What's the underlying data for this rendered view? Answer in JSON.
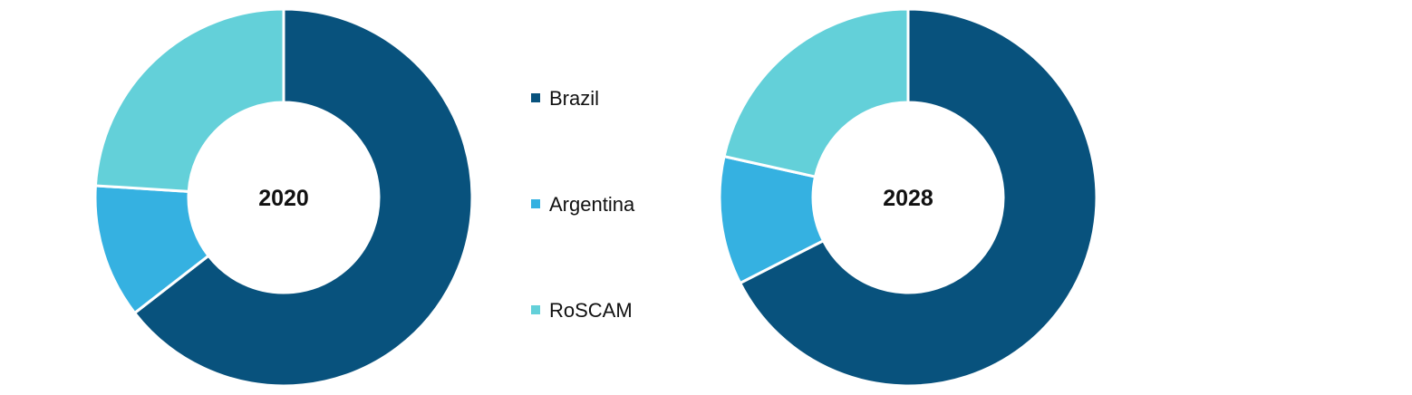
{
  "chart_data": [
    {
      "type": "pie",
      "center_label": "2020",
      "categories": [
        "Brazil",
        "Argentina",
        "RoSCAM"
      ],
      "values": [
        64.5,
        11.5,
        24.0
      ],
      "unit": "%"
    },
    {
      "type": "pie",
      "center_label": "2028",
      "categories": [
        "Brazil",
        "Argentina",
        "RoSCAM"
      ],
      "values": [
        67.5,
        11.0,
        21.5
      ],
      "unit": "%"
    }
  ],
  "legend": {
    "position": "center",
    "items": [
      {
        "label": "Brazil",
        "color": "#08527d"
      },
      {
        "label": "Argentina",
        "color": "#35b1e1"
      },
      {
        "label": "RoSCAM",
        "color": "#63d0d9"
      }
    ]
  },
  "colors": {
    "Brazil": "#08527d",
    "Argentina": "#35b1e1",
    "RoSCAM": "#63d0d9",
    "separator": "#ffffff",
    "text": "#111111"
  }
}
